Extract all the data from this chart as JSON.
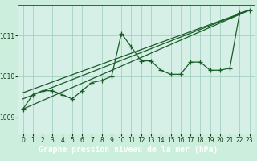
{
  "title": "Graphe pression niveau de la mer (hPa)",
  "background_color": "#cceedd",
  "plot_bg": "#d6f0e8",
  "grid_color": "#99ccbb",
  "line_color": "#1a5c28",
  "label_bg": "#2d6e3a",
  "label_fg": "#ffffff",
  "xlim": [
    -0.5,
    23.5
  ],
  "ylim": [
    1008.6,
    1011.75
  ],
  "yticks": [
    1009,
    1010,
    1011
  ],
  "xticks": [
    0,
    1,
    2,
    3,
    4,
    5,
    6,
    7,
    8,
    9,
    10,
    11,
    12,
    13,
    14,
    15,
    16,
    17,
    18,
    19,
    20,
    21,
    22,
    23
  ],
  "straight_line1": [
    [
      0,
      1009.2
    ],
    [
      23,
      1011.62
    ]
  ],
  "straight_line2": [
    [
      0,
      1009.45
    ],
    [
      23,
      1011.62
    ]
  ],
  "straight_line3": [
    [
      0,
      1009.6
    ],
    [
      23,
      1011.62
    ]
  ],
  "jagged_y": [
    1009.2,
    1009.55,
    1009.65,
    1009.65,
    1009.55,
    1009.45,
    1009.65,
    1009.85,
    1009.9,
    1010.0,
    1011.05,
    1010.72,
    1010.38,
    1010.38,
    1010.15,
    1010.05,
    1010.05,
    1010.35,
    1010.35,
    1010.15,
    1010.15,
    1010.2,
    1011.55,
    1011.62
  ],
  "title_fontsize": 7.0,
  "tick_fontsize": 5.5
}
